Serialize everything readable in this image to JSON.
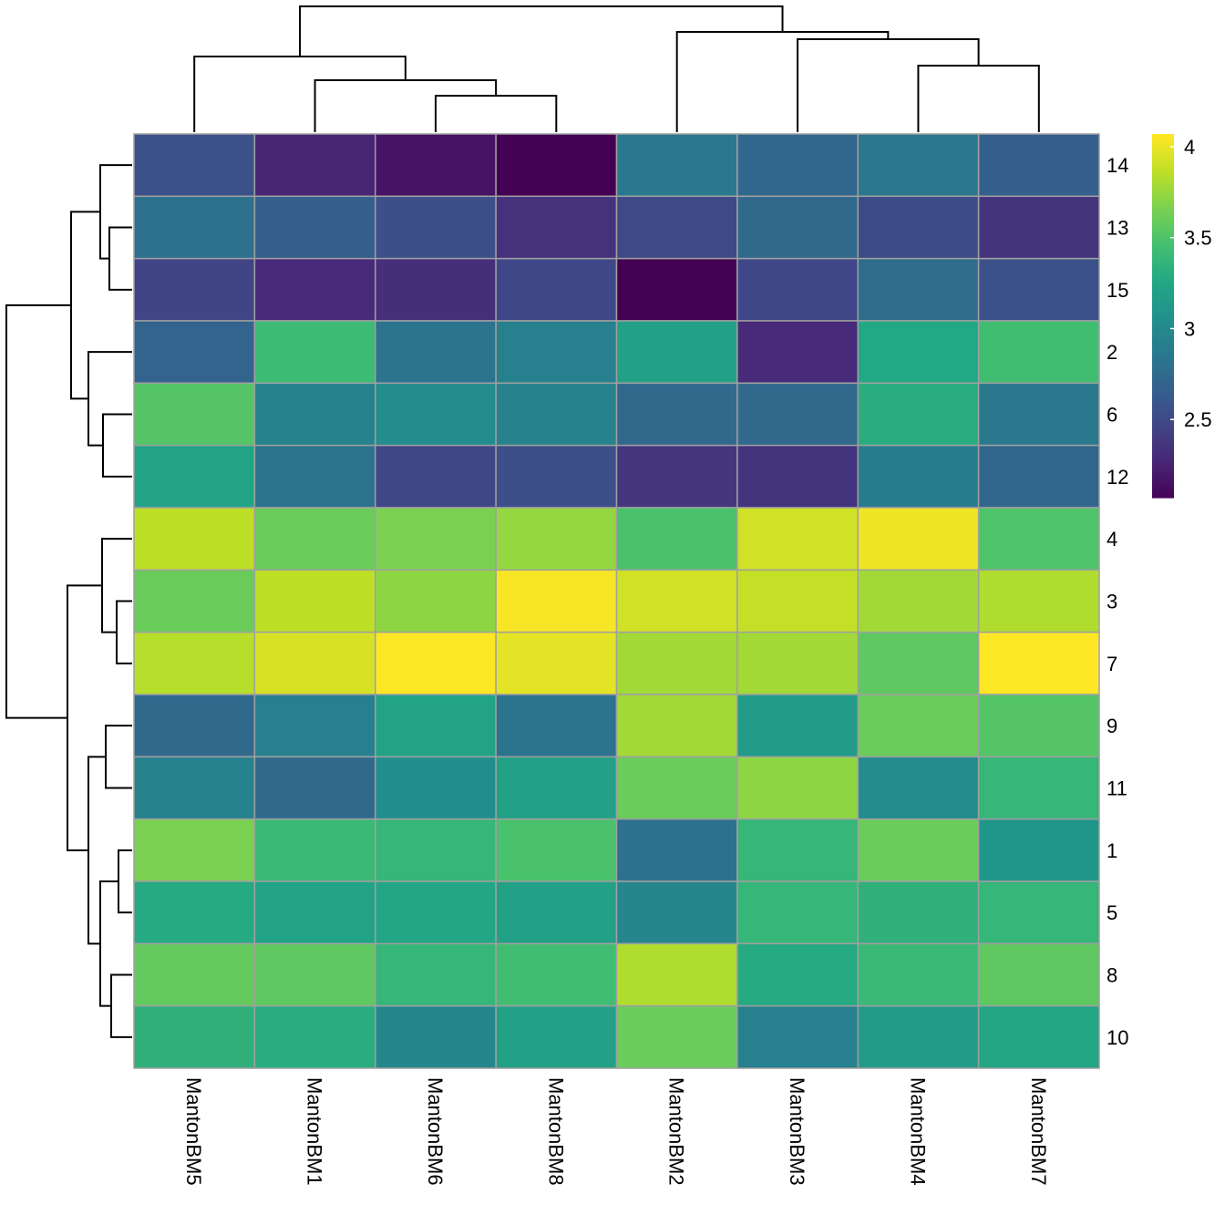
{
  "chart_data": {
    "type": "heatmap",
    "columns": [
      "MantonBM5",
      "MantonBM1",
      "MantonBM6",
      "MantonBM8",
      "MantonBM2",
      "MantonBM3",
      "MantonBM4",
      "MantonBM7"
    ],
    "rows": [
      "14",
      "13",
      "15",
      "2",
      "6",
      "12",
      "4",
      "3",
      "7",
      "9",
      "11",
      "1",
      "5",
      "8",
      "10"
    ],
    "values": [
      [
        2.57,
        2.27,
        2.17,
        2.07,
        2.87,
        2.73,
        2.87,
        2.67
      ],
      [
        2.81,
        2.67,
        2.55,
        2.35,
        2.51,
        2.75,
        2.53,
        2.37
      ],
      [
        2.47,
        2.31,
        2.33,
        2.49,
        2.07,
        2.49,
        2.77,
        2.57
      ],
      [
        2.71,
        3.43,
        2.83,
        2.93,
        3.21,
        2.31,
        3.27,
        3.45
      ],
      [
        3.53,
        2.95,
        3.03,
        2.95,
        2.75,
        2.75,
        3.31,
        2.87
      ],
      [
        3.23,
        2.83,
        2.49,
        2.55,
        2.39,
        2.37,
        2.89,
        2.73
      ],
      [
        3.87,
        3.61,
        3.67,
        3.75,
        3.49,
        3.93,
        4.03,
        3.51
      ],
      [
        3.61,
        3.87,
        3.73,
        4.05,
        3.93,
        3.89,
        3.79,
        3.83
      ],
      [
        3.85,
        3.95,
        4.07,
        3.99,
        3.79,
        3.79,
        3.57,
        4.07
      ],
      [
        2.75,
        2.93,
        3.23,
        2.83,
        3.79,
        3.17,
        3.61,
        3.53
      ],
      [
        2.95,
        2.75,
        3.05,
        3.21,
        3.61,
        3.73,
        3.03,
        3.39
      ],
      [
        3.67,
        3.41,
        3.39,
        3.49,
        2.81,
        3.39,
        3.61,
        3.11
      ],
      [
        3.29,
        3.23,
        3.25,
        3.21,
        2.99,
        3.39,
        3.35,
        3.39
      ],
      [
        3.59,
        3.57,
        3.39,
        3.45,
        3.83,
        3.29,
        3.41,
        3.57
      ],
      [
        3.35,
        3.31,
        2.99,
        3.21,
        3.61,
        2.93,
        3.17,
        3.25
      ]
    ],
    "color_scale": "viridis",
    "color_range": [
      2.07,
      4.07
    ],
    "legend": {
      "ticks": [
        4,
        3.5,
        3,
        2.5
      ],
      "tick_labels": [
        "4",
        "3.5",
        "3",
        "2.5"
      ],
      "placement": "right"
    },
    "row_dendrogram": true,
    "column_dendrogram": true,
    "cell_border_color": "#a0a0a0"
  }
}
